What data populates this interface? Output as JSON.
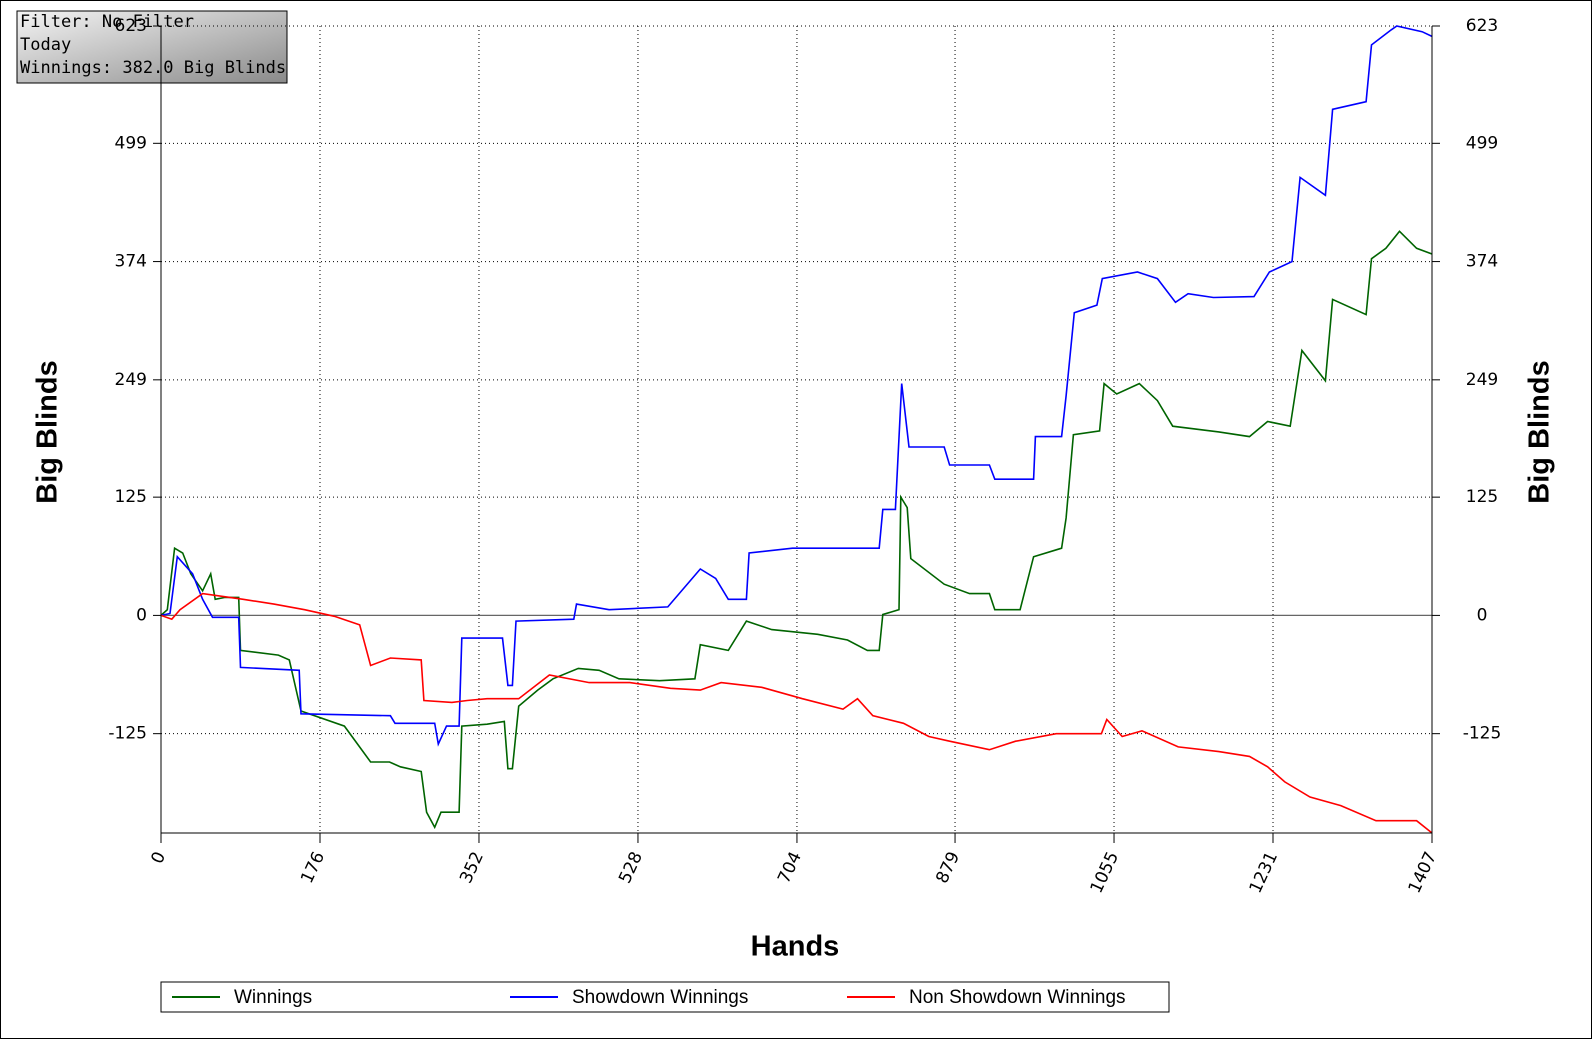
{
  "chart_data": {
    "type": "line",
    "annotations": [
      "Filter: No Filter",
      "Today",
      "Winnings: 382.0 Big Blinds"
    ],
    "x_label": "Hands",
    "y_label": "Big Blinds",
    "y2_label": "Big Blinds",
    "xlim": [
      0,
      1407
    ],
    "xticks": [
      0,
      176,
      352,
      528,
      704,
      879,
      1055,
      1231,
      1407
    ],
    "ylim": [
      -230,
      623
    ],
    "yticks": [
      -125,
      0,
      125,
      249,
      374,
      499,
      623
    ],
    "y2lim": [
      -230,
      623
    ],
    "y2ticks": [
      -125,
      0,
      125,
      249,
      374,
      499,
      623
    ],
    "grid": true,
    "legend": "bottom",
    "series": [
      {
        "name": "Winnings",
        "color": "#006400",
        "x": [
          0,
          7,
          15,
          24,
          33,
          46,
          55,
          60,
          71,
          86,
          88,
          130,
          142,
          155,
          203,
          232,
          253,
          265,
          288,
          294,
          303,
          310,
          330,
          333,
          361,
          380,
          384,
          389,
          396,
          417,
          434,
          462,
          485,
          507,
          552,
          591,
          597,
          628,
          648,
          676,
          727,
          760,
          782,
          795,
          799,
          817,
          819,
          826,
          830,
          867,
          895,
          917,
          923,
          951,
          966,
          997,
          1002,
          1010,
          1039,
          1044,
          1058,
          1083,
          1103,
          1120,
          1171,
          1205,
          1225,
          1250,
          1263,
          1289,
          1297,
          1334,
          1340,
          1356,
          1371,
          1390,
          1407
        ],
        "values": [
          0,
          6,
          71,
          66,
          44,
          26,
          44,
          17,
          19,
          19,
          -37,
          -42,
          -47,
          -101,
          -117,
          -155,
          -155,
          -160,
          -165,
          -208,
          -224,
          -208,
          -208,
          -117,
          -115,
          -112,
          -162,
          -162,
          -96,
          -79,
          -67,
          -56,
          -58,
          -67,
          -69,
          -67,
          -31,
          -37,
          -6,
          -15,
          -20,
          -26,
          -37,
          -37,
          1,
          6,
          125,
          114,
          60,
          33,
          23,
          23,
          6,
          6,
          62,
          71,
          103,
          191,
          195,
          245,
          234,
          245,
          227,
          200,
          194,
          189,
          205,
          200,
          280,
          248,
          334,
          318,
          377,
          388,
          406,
          388,
          382
        ]
      },
      {
        "name": "Showdown Winnings",
        "color": "#0000ff",
        "x": [
          0,
          10,
          18,
          35,
          46,
          57,
          86,
          88,
          153,
          155,
          254,
          259,
          303,
          307,
          316,
          330,
          333,
          378,
          384,
          389,
          393,
          457,
          460,
          496,
          561,
          597,
          614,
          628,
          648,
          651,
          699,
          795,
          799,
          813,
          820,
          828,
          867,
          873,
          917,
          923,
          966,
          968,
          997,
          1002,
          1011,
          1036,
          1042,
          1081,
          1103,
          1123,
          1137,
          1165,
          1210,
          1227,
          1252,
          1261,
          1289,
          1297,
          1334,
          1340,
          1362,
          1368,
          1396,
          1407
        ],
        "values": [
          0,
          2,
          62,
          44,
          17,
          -2,
          -2,
          -55,
          -58,
          -104,
          -106,
          -114,
          -114,
          -136,
          -117,
          -117,
          -24,
          -24,
          -74,
          -74,
          -6,
          -4,
          12,
          6,
          9,
          49,
          39,
          17,
          17,
          66,
          71,
          71,
          112,
          112,
          245,
          178,
          178,
          159,
          159,
          144,
          144,
          189,
          189,
          232,
          320,
          328,
          356,
          363,
          356,
          331,
          340,
          336,
          337,
          363,
          374,
          463,
          444,
          535,
          543,
          603,
          619,
          623,
          617,
          612
        ]
      },
      {
        "name": "Non Showdown Winnings",
        "color": "#ff0000",
        "x": [
          0,
          12,
          21,
          46,
          91,
          125,
          159,
          192,
          220,
          232,
          254,
          288,
          291,
          322,
          339,
          361,
          396,
          430,
          474,
          519,
          564,
          597,
          620,
          665,
          710,
          755,
          771,
          788,
          822,
          850,
          873,
          917,
          946,
          991,
          1041,
          1047,
          1064,
          1086,
          1126,
          1171,
          1205,
          1225,
          1244,
          1272,
          1306,
          1345,
          1390,
          1407
        ],
        "values": [
          0,
          -4,
          6,
          23,
          17,
          12,
          6,
          -1,
          -10,
          -53,
          -45,
          -47,
          -90,
          -92,
          -90,
          -88,
          -88,
          -63,
          -71,
          -71,
          -77,
          -79,
          -71,
          -76,
          -88,
          -99,
          -88,
          -106,
          -114,
          -128,
          -133,
          -142,
          -133,
          -125,
          -125,
          -110,
          -128,
          -122,
          -139,
          -144,
          -149,
          -160,
          -176,
          -192,
          -201,
          -217,
          -217,
          -230
        ]
      }
    ]
  }
}
